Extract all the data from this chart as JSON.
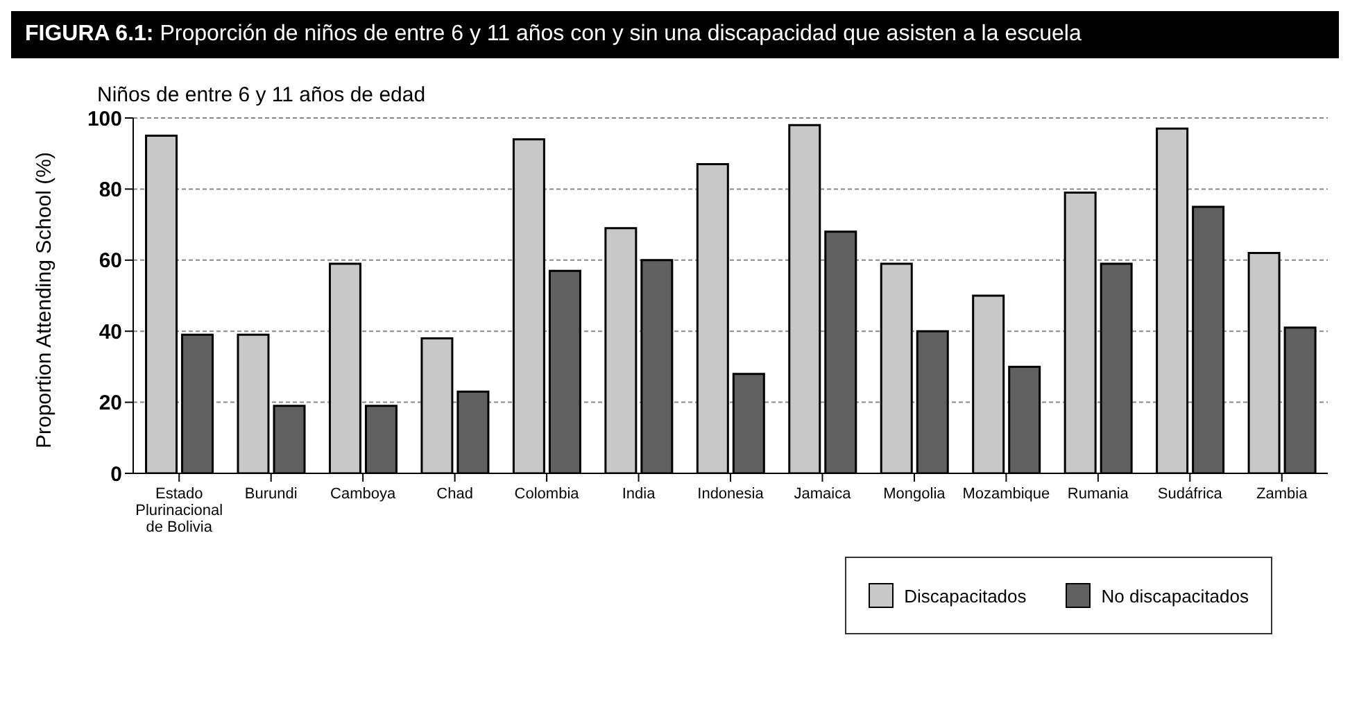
{
  "chart_data": {
    "type": "bar",
    "title": "FIGURA 6.1: Proporción de niños de entre 6 y 11 años con y sin una discapacidad que asisten a la escuela",
    "subtitle": "Niños de entre 6 y 11 años de edad",
    "ylabel": "Proportion Attending School (%)",
    "categories": [
      "Estado Plurinacional de Bolivia",
      "Burundi",
      "Camboya",
      "Chad",
      "Colombia",
      "India",
      "Indonesia",
      "Jamaica",
      "Mongolia",
      "Mozambique",
      "Rumania",
      "Sudáfrica",
      "Zambia"
    ],
    "series": [
      {
        "name": "Discapacitados",
        "color": "#c8c8c8",
        "values": [
          95,
          39,
          59,
          38,
          94,
          69,
          87,
          98,
          59,
          50,
          79,
          97,
          62
        ]
      },
      {
        "name": "No discapacitados",
        "color": "#606060",
        "values": [
          39,
          19,
          19,
          23,
          57,
          60,
          28,
          68,
          40,
          30,
          59,
          75,
          41
        ]
      }
    ],
    "ylim": [
      0,
      100
    ],
    "yticks": [
      0,
      20,
      40,
      60,
      80,
      100
    ],
    "grid": "y",
    "legend": "bottom right"
  }
}
